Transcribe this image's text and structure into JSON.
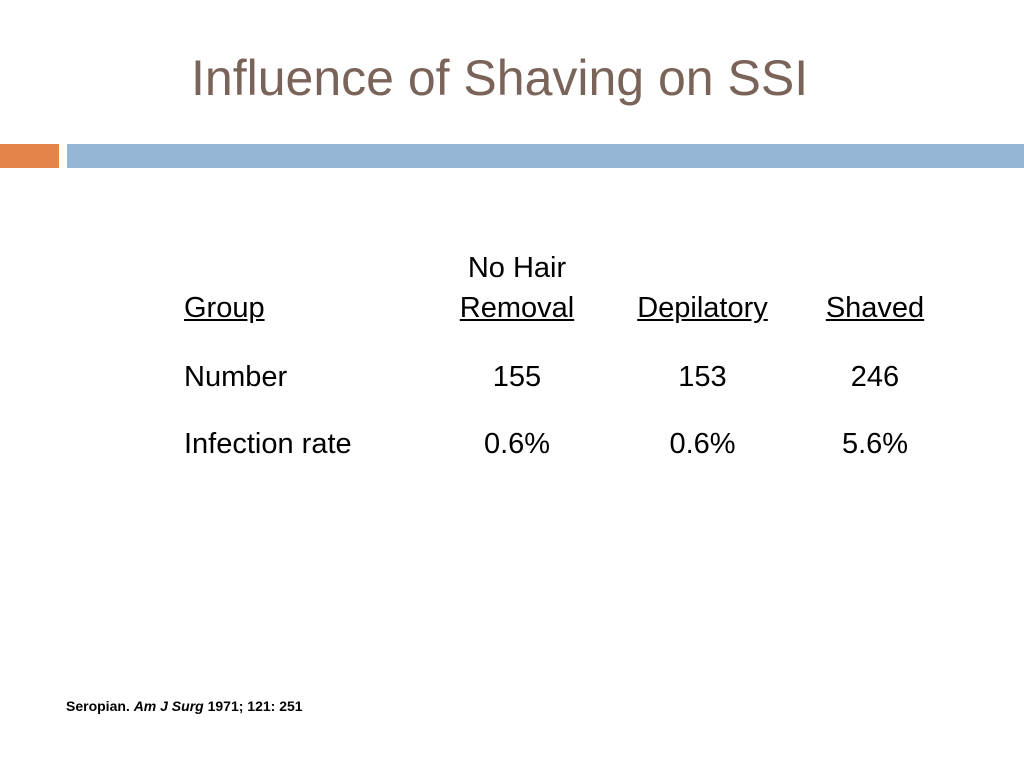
{
  "slide": {
    "title": "Influence of Shaving on SSI",
    "accent_color": "#e3844a",
    "bar_color": "#96b6d6",
    "title_color": "#7a6358"
  },
  "table": {
    "header": {
      "group": "Group",
      "col1_line1": "No Hair",
      "col1_line2": "Removal",
      "col2": "Depilatory",
      "col3": "Shaved"
    },
    "rows": [
      {
        "label": "Number",
        "values": [
          "155",
          "153",
          "246"
        ]
      },
      {
        "label": "Infection rate",
        "values": [
          "0.6%",
          "0.6%",
          "5.6%"
        ]
      }
    ]
  },
  "citation": {
    "author": "Seropian.",
    "journal": "Am J Surg",
    "details": "1971; 121: 251"
  }
}
